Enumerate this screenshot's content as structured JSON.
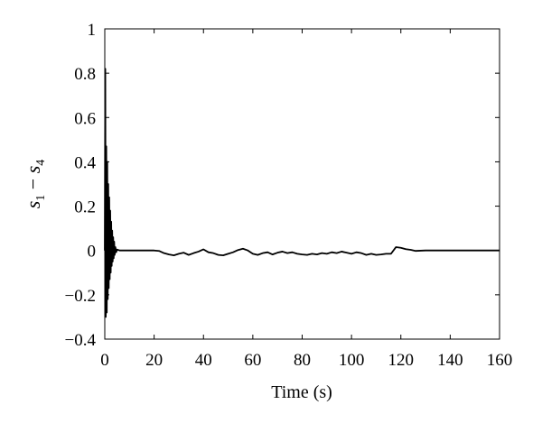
{
  "chart_data": {
    "type": "line",
    "title": "",
    "xlabel": "Time (s)",
    "ylabel": {
      "var1": "s",
      "sub1": "1",
      "op": " − ",
      "var2": "s",
      "sub2": "4"
    },
    "xlim": [
      0,
      160
    ],
    "ylim": [
      -0.4,
      1
    ],
    "xticks": [
      0,
      20,
      40,
      60,
      80,
      100,
      120,
      140,
      160
    ],
    "yticks": [
      -0.4,
      -0.2,
      0,
      0.2,
      0.4,
      0.6,
      0.8,
      1
    ],
    "xtick_labels": [
      "0",
      "20",
      "40",
      "60",
      "80",
      "100",
      "120",
      "140",
      "160"
    ],
    "ytick_labels": [
      "−0.4",
      "−0.2",
      "0",
      "0.2",
      "0.4",
      "0.6",
      "0.8",
      "1"
    ],
    "grid": false,
    "legend": "none",
    "line_color": "#000000",
    "series": [
      {
        "x": [
          0,
          0.2,
          0.4,
          0.6,
          0.8,
          1.0,
          1.2,
          1.4,
          1.6,
          1.8,
          2.0,
          2.2,
          2.4,
          2.6,
          2.8,
          3.0,
          3.2,
          3.4,
          3.6,
          3.8,
          4.0,
          4.3,
          4.6,
          5,
          6,
          8,
          10,
          15,
          20,
          22,
          24,
          26,
          28,
          30,
          32,
          34,
          36,
          38,
          40,
          42,
          44,
          46,
          48,
          50,
          52,
          54,
          56,
          58,
          60,
          62,
          64,
          66,
          68,
          70,
          72,
          74,
          76,
          78,
          80,
          82,
          84,
          86,
          88,
          90,
          92,
          94,
          96,
          98,
          100,
          102,
          104,
          106,
          108,
          110,
          112,
          114,
          116,
          118,
          120,
          122,
          124,
          126,
          130,
          140,
          150,
          160
        ],
        "y": [
          0,
          0.82,
          -0.3,
          0.47,
          -0.28,
          0.4,
          -0.22,
          0.3,
          -0.17,
          0.24,
          -0.13,
          0.18,
          -0.1,
          0.13,
          -0.07,
          0.09,
          -0.05,
          0.06,
          -0.035,
          0.04,
          -0.02,
          0.015,
          -0.008,
          0.004,
          0,
          0,
          0,
          0,
          0,
          -0.002,
          -0.012,
          -0.018,
          -0.022,
          -0.015,
          -0.01,
          -0.02,
          -0.012,
          -0.005,
          0.005,
          -0.008,
          -0.012,
          -0.02,
          -0.022,
          -0.015,
          -0.008,
          0.002,
          0.008,
          0,
          -0.015,
          -0.02,
          -0.012,
          -0.008,
          -0.018,
          -0.01,
          -0.005,
          -0.012,
          -0.008,
          -0.015,
          -0.018,
          -0.02,
          -0.015,
          -0.018,
          -0.012,
          -0.015,
          -0.008,
          -0.012,
          -0.005,
          -0.01,
          -0.015,
          -0.008,
          -0.012,
          -0.02,
          -0.015,
          -0.02,
          -0.018,
          -0.015,
          -0.015,
          0.015,
          0.012,
          0.006,
          0.003,
          -0.002,
          0,
          0,
          0,
          0
        ]
      }
    ]
  }
}
